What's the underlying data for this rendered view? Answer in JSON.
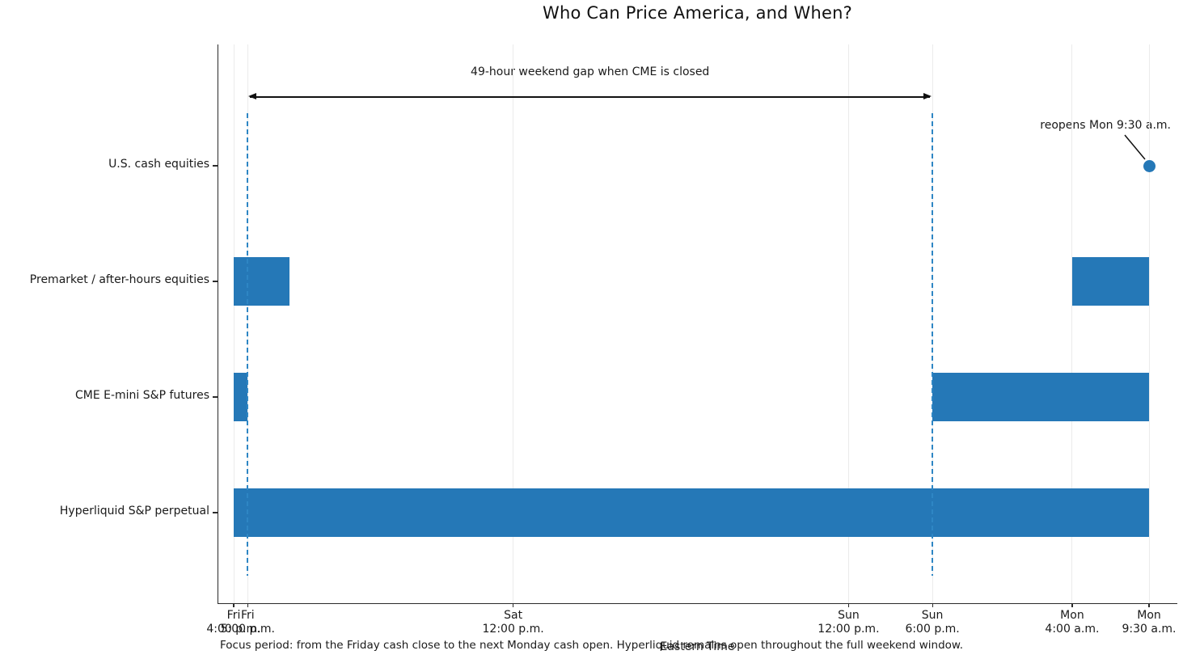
{
  "chart_data": {
    "type": "bar",
    "subtype": "horizontal-gantt-timeline",
    "title": "Who Can Price America, and When?",
    "xlabel": "Eastern Time",
    "caption": "Focus period: from the Friday cash close to the next Monday cash open. Hyperliquid remains open throughout the full weekend window.",
    "x_unit": "hours since Fri 4:00 p.m. ET",
    "x_range_hours": [
      0,
      65.5
    ],
    "grid": true,
    "legend": "none",
    "x_ticks": [
      {
        "hour": 0,
        "line1": "Fri",
        "line2": "4:00 p.m."
      },
      {
        "hour": 1,
        "line1": "Fri",
        "line2": "5:00 p.m."
      },
      {
        "hour": 20,
        "line1": "Sat",
        "line2": "12:00 p.m."
      },
      {
        "hour": 44,
        "line1": "Sun",
        "line2": "12:00 p.m."
      },
      {
        "hour": 50,
        "line1": "Sun",
        "line2": "6:00 p.m."
      },
      {
        "hour": 60,
        "line1": "Mon",
        "line2": "4:00 a.m."
      },
      {
        "hour": 65.5,
        "line1": "Mon",
        "line2": "9:30 a.m."
      }
    ],
    "rows": [
      {
        "label": "U.S. cash equities",
        "bars": [],
        "marker": {
          "hour": 65.5
        }
      },
      {
        "label": "Premarket / after-hours equities",
        "bars": [
          {
            "start": 0,
            "end": 4
          },
          {
            "start": 60,
            "end": 65.5
          }
        ]
      },
      {
        "label": "CME E-mini S&P futures",
        "bars": [
          {
            "start": 0,
            "end": 1
          },
          {
            "start": 50,
            "end": 65.5
          }
        ]
      },
      {
        "label": "Hyperliquid S&P perpetual",
        "bars": [
          {
            "start": 0,
            "end": 65.5
          }
        ]
      }
    ],
    "reference_lines": [
      {
        "hour": 1
      },
      {
        "hour": 50
      }
    ],
    "gap_annotation": {
      "text": "49-hour weekend gap when CME is closed",
      "from_hour": 1,
      "to_hour": 50
    },
    "marker_annotation": {
      "text": "reopens Mon 9:30 a.m."
    },
    "colors": {
      "bar": "#2578b7",
      "marker_dot": "#2578b7",
      "dashed_line": "#2e86c4",
      "gridline": "#ebebeb",
      "axis": "#2b2b2b",
      "text": "#1a1a1a",
      "annotation_arrow": "#111111"
    }
  }
}
